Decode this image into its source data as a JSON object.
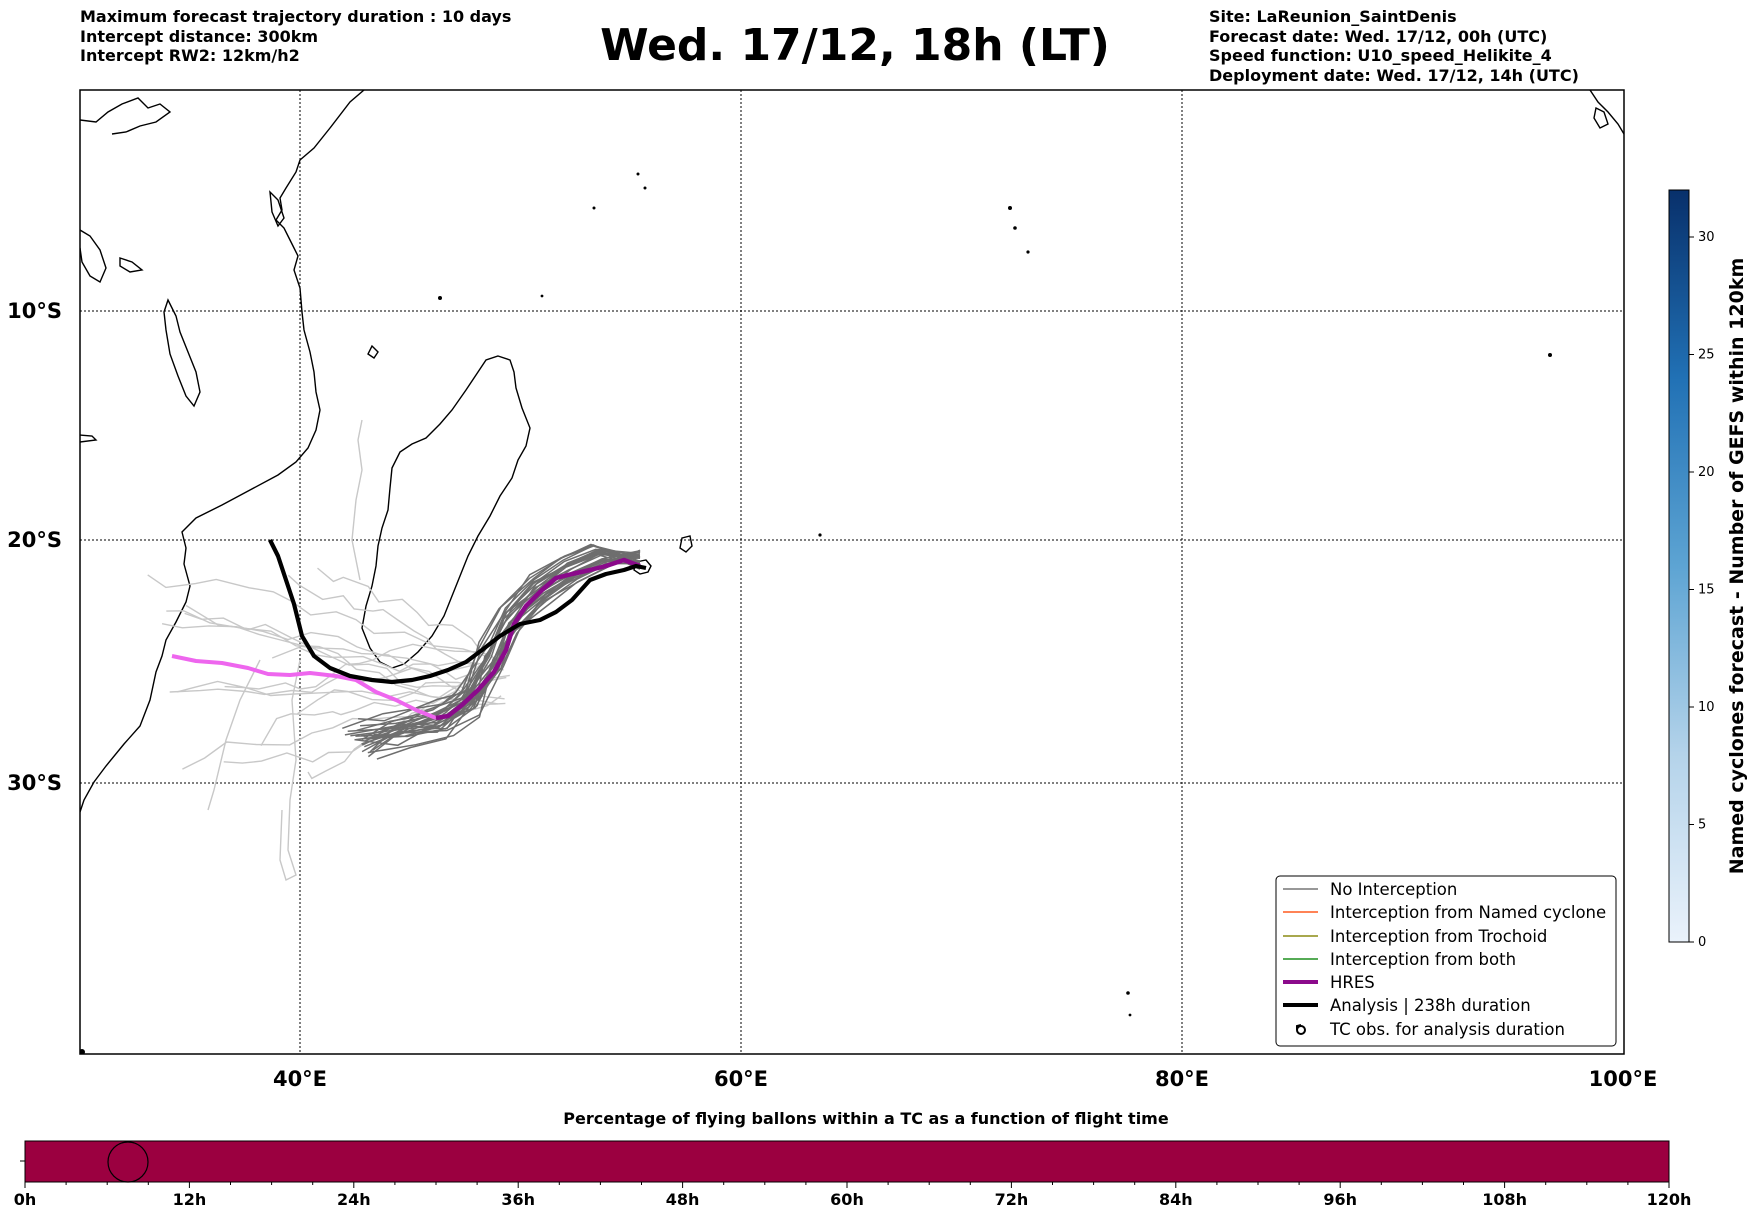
{
  "header": {
    "left": [
      "Maximum forecast trajectory duration : 10 days",
      "Intercept distance: 300km",
      "Intercept RW2: 12km/h2"
    ],
    "title": "Wed. 17/12, 18h (LT)",
    "right": [
      "Site: LaReunion_SaintDenis",
      "Forecast date: Wed. 17/12, 00h (UTC)",
      "Speed function: U10_speed_Helikite_4",
      "Deployment date: Wed. 17/12, 14h (UTC)"
    ]
  },
  "map": {
    "lat_labels": [
      "10°S",
      "20°S",
      "30°S"
    ],
    "lon_labels": [
      "40°E",
      "60°E",
      "80°E",
      "100°E"
    ]
  },
  "legend": {
    "items": [
      {
        "label": "No Interception",
        "color": "#777777"
      },
      {
        "label": "Interception from Named cyclone",
        "color": "#ff5a1e"
      },
      {
        "label": "Interception from Trochoid",
        "color": "#8b8b14"
      },
      {
        "label": "Interception from both",
        "color": "#1f8f1f"
      },
      {
        "label": "HRES",
        "color": "#8b0a8b"
      },
      {
        "label": "Analysis | 238h duration",
        "color": "#000000"
      },
      {
        "label": "TC obs. for analysis duration",
        "color": "#000000",
        "icon": "cyclone-symbol-icon"
      }
    ]
  },
  "colorbar": {
    "label": "Named cyclones forecast - Number of GEFS within 120km",
    "ticks": [
      "0",
      "5",
      "10",
      "15",
      "20",
      "25",
      "30"
    ]
  },
  "bottom_bar": {
    "title": "Percentage of flying ballons within a TC as a function of flight time",
    "ticks": [
      "0h",
      "12h",
      "24h",
      "36h",
      "48h",
      "60h",
      "72h",
      "84h",
      "96h",
      "108h",
      "120h"
    ],
    "fill_color": "#9b0040"
  },
  "colors": {
    "ensemble_far": "#c8c8c8",
    "ensemble_near": "#6e6e6e",
    "hres_far": "#ee66ee",
    "hres_near": "#8b0a8b",
    "analysis": "#000000"
  }
}
